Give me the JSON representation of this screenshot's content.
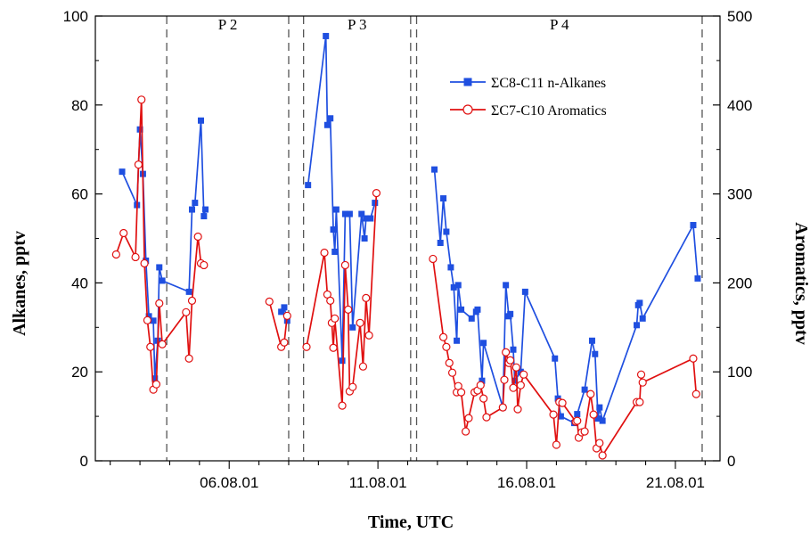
{
  "chart_data": {
    "type": "line",
    "xlabel": "Time, UTC",
    "ylabel": "Alkanes, pptv",
    "y2label": "Aromatics, pptv",
    "x_ticks": [
      "06.08.01",
      "11.08.01",
      "16.08.01",
      "21.08.01"
    ],
    "x_tick_values": [
      6,
      11,
      16,
      21
    ],
    "xlim": [
      1.5,
      22.5
    ],
    "ylim": [
      0,
      100
    ],
    "y2lim": [
      0,
      500
    ],
    "y_ticks": [
      0,
      20,
      40,
      60,
      80,
      100
    ],
    "y2_ticks": [
      0,
      100,
      200,
      300,
      400,
      500
    ],
    "periods": [
      {
        "label": "P 2",
        "x_start": 3.9,
        "x_end": 8.0
      },
      {
        "label": "P 3",
        "x_start": 8.5,
        "x_end": 12.1
      },
      {
        "label": "P 4",
        "x_start": 12.3,
        "x_end": 21.9
      }
    ],
    "period_lines": [
      3.9,
      8.0,
      8.5,
      12.1,
      12.3,
      21.9
    ],
    "legend_position": "top-right",
    "series": [
      {
        "name": "ΣC8-C11 n-Alkanes",
        "axis": "left",
        "color": "#1f4fe0",
        "marker": "square",
        "segments": [
          [
            [
              2.4,
              65
            ],
            [
              2.9,
              57.5
            ],
            [
              3.0,
              74.5
            ],
            [
              3.1,
              64.5
            ],
            [
              3.2,
              45
            ],
            [
              3.3,
              32.5
            ],
            [
              3.45,
              31.5
            ],
            [
              3.5,
              18.5
            ],
            [
              3.6,
              27
            ],
            [
              3.65,
              43.5
            ],
            [
              3.75,
              40.5
            ],
            [
              4.65,
              38
            ],
            [
              4.75,
              56.5
            ],
            [
              4.85,
              58
            ],
            [
              5.05,
              76.5
            ],
            [
              5.15,
              55
            ],
            [
              5.2,
              56.5
            ]
          ],
          [
            [
              7.75,
              33.5
            ],
            [
              7.85,
              34.5
            ],
            [
              7.95,
              31.5
            ]
          ],
          [
            [
              8.65,
              62
            ],
            [
              9.25,
              95.5
            ],
            [
              9.3,
              75.5
            ],
            [
              9.4,
              77
            ],
            [
              9.5,
              52
            ],
            [
              9.55,
              47
            ],
            [
              9.6,
              56.5
            ],
            [
              9.8,
              22.5
            ],
            [
              9.9,
              55.5
            ],
            [
              10.05,
              55.5
            ],
            [
              10.15,
              30
            ],
            [
              10.45,
              55.5
            ],
            [
              10.55,
              50
            ],
            [
              10.6,
              54.5
            ],
            [
              10.75,
              54.5
            ],
            [
              10.9,
              58
            ]
          ]
        ]
      },
      {
        "name": "ΣC8-C11 n-Alkanes (P4)",
        "axis": "left",
        "color": "#1f4fe0",
        "marker": "square",
        "segments": [
          [
            [
              12.9,
              65.5
            ],
            [
              13.1,
              49
            ],
            [
              13.2,
              59
            ],
            [
              13.3,
              51.5
            ],
            [
              13.45,
              43.5
            ],
            [
              13.55,
              39
            ],
            [
              13.65,
              27
            ],
            [
              13.7,
              39.5
            ],
            [
              13.8,
              34
            ],
            [
              14.15,
              32
            ],
            [
              14.3,
              33.5
            ],
            [
              14.35,
              34
            ],
            [
              14.5,
              18
            ],
            [
              14.55,
              26.5
            ],
            [
              15.2,
              12
            ],
            [
              15.3,
              39.5
            ],
            [
              15.4,
              32.5
            ],
            [
              15.45,
              33
            ],
            [
              15.55,
              25
            ],
            [
              15.6,
              18
            ],
            [
              15.8,
              20
            ],
            [
              15.95,
              38
            ],
            [
              16.95,
              23
            ],
            [
              17.05,
              14
            ],
            [
              17.15,
              10
            ],
            [
              17.6,
              8.5
            ],
            [
              17.7,
              10.5
            ],
            [
              17.95,
              16
            ],
            [
              18.2,
              27
            ],
            [
              18.3,
              24
            ],
            [
              18.4,
              9.5
            ],
            [
              18.45,
              12
            ],
            [
              18.55,
              9
            ],
            [
              19.7,
              30.5
            ],
            [
              19.75,
              35
            ],
            [
              19.8,
              35.5
            ],
            [
              19.9,
              32
            ],
            [
              21.6,
              53
            ],
            [
              21.75,
              41
            ]
          ]
        ]
      },
      {
        "name": "ΣC7-C10 Aromatics",
        "axis": "right",
        "color": "#e01010",
        "marker": "circle",
        "segments": [
          [
            [
              2.2,
              232
            ],
            [
              2.45,
              256
            ],
            [
              2.85,
              229
            ],
            [
              2.95,
              333
            ],
            [
              3.05,
              406
            ],
            [
              3.15,
              222
            ],
            [
              3.25,
              158
            ],
            [
              3.35,
              128
            ],
            [
              3.45,
              80
            ],
            [
              3.55,
              86
            ],
            [
              3.65,
              177
            ],
            [
              3.75,
              131
            ],
            [
              4.55,
              167
            ],
            [
              4.65,
              115
            ],
            [
              4.75,
              180
            ],
            [
              4.95,
              252
            ],
            [
              5.05,
              222
            ],
            [
              5.15,
              220
            ]
          ],
          [
            [
              7.35,
              179
            ],
            [
              7.75,
              128
            ],
            [
              7.85,
              133
            ],
            [
              7.95,
              163
            ]
          ],
          [
            [
              8.6,
              128
            ],
            [
              9.2,
              234
            ],
            [
              9.3,
              187
            ],
            [
              9.4,
              180
            ],
            [
              9.45,
              155
            ],
            [
              9.5,
              127
            ],
            [
              9.55,
              160
            ],
            [
              9.8,
              62
            ],
            [
              9.9,
              220
            ],
            [
              10.0,
              170
            ],
            [
              10.05,
              78
            ],
            [
              10.15,
              83
            ],
            [
              10.4,
              155
            ],
            [
              10.5,
              106
            ],
            [
              10.6,
              183
            ],
            [
              10.7,
              141
            ],
            [
              10.95,
              301
            ]
          ]
        ]
      },
      {
        "name": "ΣC7-C10 Aromatics (P4)",
        "axis": "right",
        "color": "#e01010",
        "marker": "circle",
        "segments": [
          [
            [
              12.85,
              227
            ],
            [
              13.2,
              139
            ],
            [
              13.3,
              128
            ],
            [
              13.4,
              110
            ],
            [
              13.5,
              99
            ],
            [
              13.65,
              77
            ],
            [
              13.7,
              84
            ],
            [
              13.8,
              77
            ],
            [
              13.95,
              33
            ],
            [
              14.05,
              48
            ],
            [
              14.25,
              77
            ],
            [
              14.35,
              79
            ],
            [
              14.45,
              85
            ],
            [
              14.55,
              70
            ],
            [
              14.65,
              49
            ],
            [
              15.2,
              60
            ],
            [
              15.25,
              91
            ],
            [
              15.3,
              122
            ],
            [
              15.4,
              110
            ],
            [
              15.45,
              113
            ],
            [
              15.55,
              82
            ],
            [
              15.65,
              105
            ],
            [
              15.7,
              58
            ],
            [
              15.8,
              85
            ],
            [
              15.9,
              97
            ],
            [
              16.9,
              52
            ],
            [
              17.0,
              18
            ],
            [
              17.1,
              66
            ],
            [
              17.2,
              65
            ],
            [
              17.65,
              44
            ],
            [
              17.7,
              45
            ],
            [
              17.75,
              26
            ],
            [
              17.85,
              32
            ],
            [
              17.95,
              33
            ],
            [
              18.15,
              75
            ],
            [
              18.25,
              52
            ],
            [
              18.35,
              14
            ],
            [
              18.45,
              20
            ],
            [
              18.55,
              6
            ],
            [
              19.7,
              66
            ],
            [
              19.8,
              66
            ],
            [
              19.85,
              97
            ],
            [
              19.9,
              88
            ],
            [
              21.6,
              115
            ],
            [
              21.7,
              75
            ]
          ]
        ]
      }
    ],
    "legend": [
      {
        "label": "ΣC8-C11 n-Alkanes",
        "color": "#1f4fe0",
        "marker": "square"
      },
      {
        "label": "ΣC7-C10 Aromatics",
        "color": "#e01010",
        "marker": "circle"
      }
    ]
  }
}
